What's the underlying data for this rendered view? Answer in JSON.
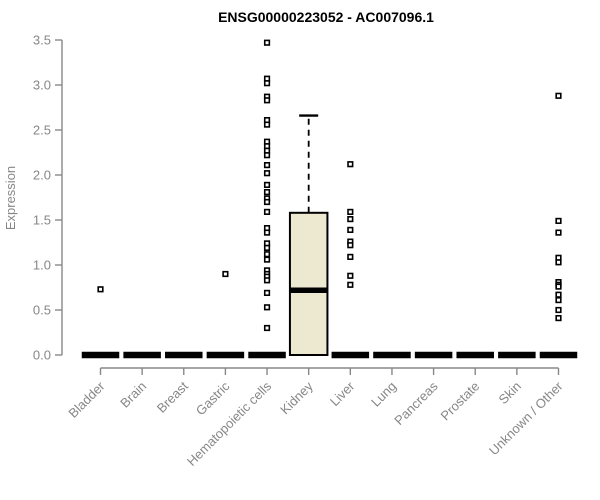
{
  "chart_data": {
    "type": "boxplot",
    "title": "ENSG00000223052 - AC007096.1",
    "ylabel": "Expression",
    "xlabel": "",
    "ylim": [
      0,
      3.5
    ],
    "yticks": [
      0.0,
      0.5,
      1.0,
      1.5,
      2.0,
      2.5,
      3.0,
      3.5
    ],
    "grid": false,
    "legend": "none",
    "categories": [
      "Bladder",
      "Brain",
      "Breast",
      "Gastric",
      "Hematopoietic cells",
      "Kidney",
      "Liver",
      "Lung",
      "Pancreas",
      "Prostate",
      "Skin",
      "Unknown / Other"
    ],
    "series": [
      {
        "name": "Bladder",
        "q1": 0,
        "median": 0,
        "q3": 0,
        "whisker_low": 0,
        "whisker_high": 0,
        "outliers": [
          0.73
        ]
      },
      {
        "name": "Brain",
        "q1": 0,
        "median": 0,
        "q3": 0,
        "whisker_low": 0,
        "whisker_high": 0,
        "outliers": []
      },
      {
        "name": "Breast",
        "q1": 0,
        "median": 0,
        "q3": 0,
        "whisker_low": 0,
        "whisker_high": 0,
        "outliers": []
      },
      {
        "name": "Gastric",
        "q1": 0,
        "median": 0,
        "q3": 0,
        "whisker_low": 0,
        "whisker_high": 0,
        "outliers": [
          0.9
        ]
      },
      {
        "name": "Hematopoietic cells",
        "q1": 0,
        "median": 0,
        "q3": 0,
        "whisker_low": 0,
        "whisker_high": 0,
        "outliers": [
          3.47,
          3.07,
          3.02,
          2.87,
          2.83,
          2.61,
          2.56,
          2.37,
          2.32,
          2.27,
          2.22,
          2.11,
          2.02,
          1.89,
          1.81,
          1.74,
          1.7,
          1.59,
          1.41,
          1.36,
          1.24,
          1.19,
          1.12,
          1.06,
          0.94,
          0.9,
          0.87,
          0.83,
          0.69,
          0.53,
          0.3
        ]
      },
      {
        "name": "Kidney",
        "q1": 0,
        "median": 0.72,
        "q3": 1.58,
        "whisker_low": 0,
        "whisker_high": 2.66,
        "outliers": []
      },
      {
        "name": "Liver",
        "q1": 0,
        "median": 0,
        "q3": 0,
        "whisker_low": 0,
        "whisker_high": 0,
        "outliers": [
          2.12,
          1.59,
          1.51,
          1.39,
          1.26,
          1.22,
          1.09,
          0.88,
          0.78
        ]
      },
      {
        "name": "Lung",
        "q1": 0,
        "median": 0,
        "q3": 0,
        "whisker_low": 0,
        "whisker_high": 0,
        "outliers": []
      },
      {
        "name": "Pancreas",
        "q1": 0,
        "median": 0,
        "q3": 0,
        "whisker_low": 0,
        "whisker_high": 0,
        "outliers": []
      },
      {
        "name": "Prostate",
        "q1": 0,
        "median": 0,
        "q3": 0,
        "whisker_low": 0,
        "whisker_high": 0,
        "outliers": []
      },
      {
        "name": "Skin",
        "q1": 0,
        "median": 0,
        "q3": 0,
        "whisker_low": 0,
        "whisker_high": 0,
        "outliers": []
      },
      {
        "name": "Unknown / Other",
        "q1": 0,
        "median": 0,
        "q3": 0,
        "whisker_low": 0,
        "whisker_high": 0,
        "outliers": [
          2.88,
          1.49,
          1.36,
          1.08,
          1.03,
          0.81,
          0.78,
          0.76,
          0.67,
          0.61,
          0.5,
          0.41
        ]
      }
    ],
    "colors": {
      "background": "#ffffff",
      "box_fill": "#ede8d0",
      "box_border": "#000000",
      "median": "#000000",
      "whisker": "#000000",
      "outlier_fill": "#ffffff",
      "outlier_border": "#000000",
      "zero_bar": "#000000",
      "axis": "#888888",
      "tick_text": "#878787",
      "title_text": "#000000"
    }
  }
}
